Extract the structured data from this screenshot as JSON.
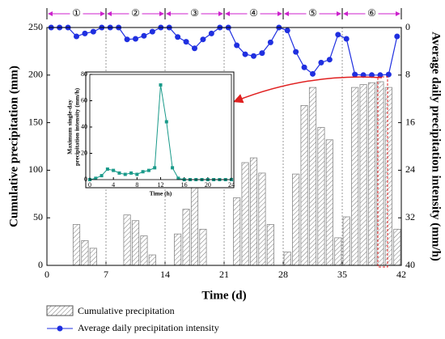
{
  "chart_data": [
    {
      "type": "bar-line",
      "xlabel": "Time (d)",
      "ylabel": "Cumulative precipitation (mm)",
      "y2label": "Average daily precipitation intensity (mm/h)",
      "x": [
        0.5,
        1.5,
        2.5,
        3.5,
        4.5,
        5.5,
        6.5,
        7.5,
        8.5,
        9.5,
        10.5,
        11.5,
        12.5,
        13.5,
        14.5,
        15.5,
        16.5,
        17.5,
        18.5,
        19.5,
        20.5,
        21.5,
        22.5,
        23.5,
        24.5,
        25.5,
        26.5,
        27.5,
        28.5,
        29.5,
        30.5,
        31.5,
        32.5,
        33.5,
        34.5,
        35.5,
        36.5,
        37.5,
        38.5,
        39.5,
        40.5,
        41.5
      ],
      "series": [
        {
          "name": "Cumulative precipitation",
          "type": "bar",
          "color": "#888888",
          "values": [
            null,
            null,
            null,
            43,
            26,
            18,
            null,
            null,
            null,
            53,
            47,
            31,
            11,
            null,
            null,
            33,
            59,
            84,
            38,
            null,
            null,
            null,
            71,
            108,
            113,
            97,
            43,
            null,
            14,
            96,
            168,
            187,
            145,
            132,
            29,
            51,
            187,
            190,
            192,
            193,
            187,
            38
          ]
        },
        {
          "name": "Average daily precipitation intensity",
          "type": "line",
          "axis": "y2",
          "color": "#1f2fe0",
          "values": [
            0,
            0,
            0,
            1.5,
            1,
            0.7,
            0,
            0,
            0,
            2,
            1.9,
            1.4,
            0.7,
            0,
            0,
            1.6,
            2.4,
            3.5,
            2,
            1,
            0,
            0,
            3,
            4.5,
            4.8,
            4.3,
            2.5,
            0,
            0.5,
            4.1,
            6.7,
            7.8,
            5.9,
            5.4,
            1.2,
            1.9,
            7.9,
            8,
            8,
            8,
            7.9,
            1.5
          ]
        }
      ],
      "xlim": [
        0,
        42
      ],
      "xticks": [
        0,
        7,
        14,
        21,
        28,
        35,
        42
      ],
      "ylim": [
        0,
        250
      ],
      "yticks": [
        0,
        50,
        100,
        150,
        200,
        250
      ],
      "y2lim": [
        40,
        0
      ],
      "y2ticks": [
        0,
        8,
        16,
        24,
        32,
        40
      ],
      "phases": {
        "boundaries": [
          0,
          7,
          14,
          21,
          28,
          35,
          42
        ],
        "labels": [
          "①",
          "②",
          "③",
          "④",
          "⑤",
          "⑥"
        ],
        "color": "#cc22cc"
      }
    },
    {
      "type": "line",
      "xlabel": "Time (h)",
      "ylabel": [
        "Maximum single-day",
        "precipitation intensity (mm/h)"
      ],
      "x": [
        0,
        1,
        2,
        3,
        4,
        5,
        6,
        7,
        8,
        9,
        10,
        11,
        12,
        13,
        14,
        15,
        16,
        17,
        18,
        19,
        20,
        21,
        22,
        23,
        24
      ],
      "values": [
        0,
        1,
        3,
        8,
        7,
        5,
        4,
        5,
        4,
        6,
        7,
        9,
        72,
        44,
        9,
        1,
        0,
        0,
        0,
        0,
        0,
        0,
        0,
        0,
        0
      ],
      "color": "#1a9a8a",
      "xlim": [
        0,
        24
      ],
      "xticks": [
        0,
        4,
        8,
        12,
        16,
        20,
        24
      ],
      "ylim": [
        0,
        80
      ],
      "yticks": [
        0,
        20,
        40,
        60,
        80
      ]
    }
  ]
}
